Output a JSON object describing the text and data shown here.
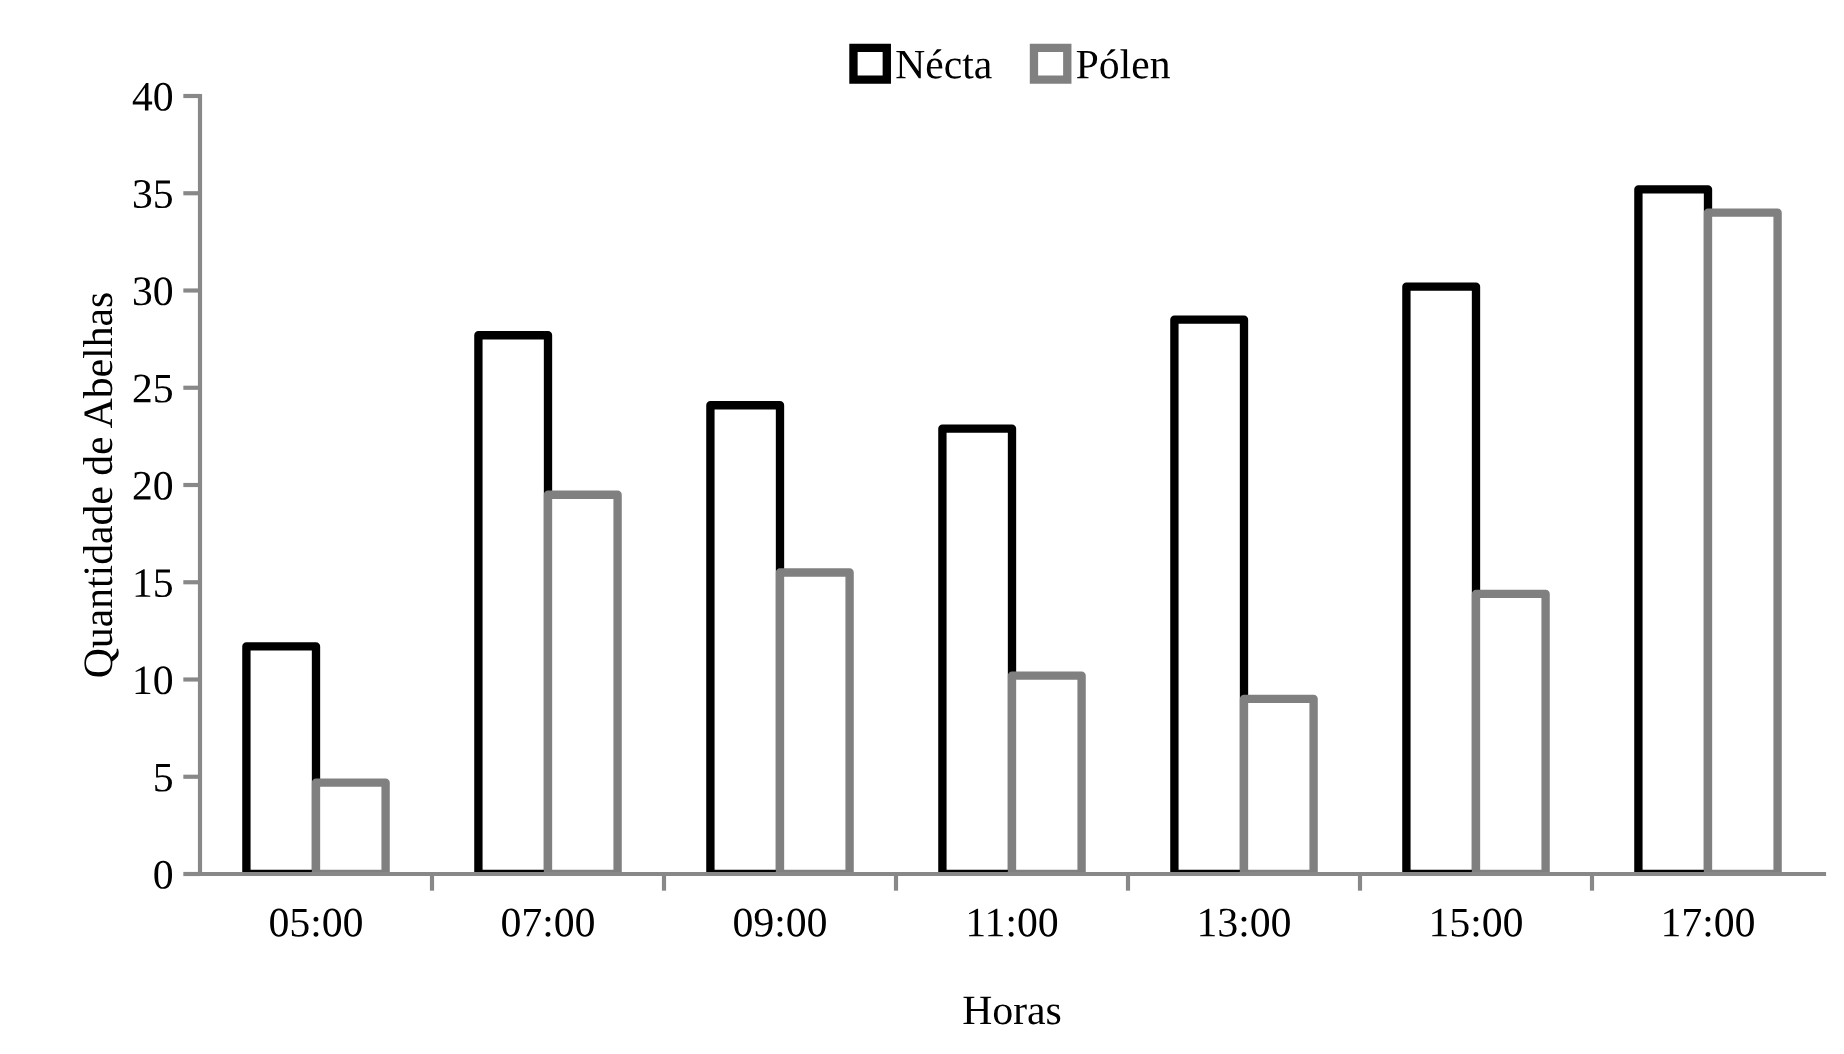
{
  "chart_data": {
    "type": "bar",
    "xlabel": "Horas",
    "ylabel": "Quantidade de Abelhas",
    "categories": [
      "05:00",
      "07:00",
      "09:00",
      "11:00",
      "13:00",
      "15:00",
      "17:00"
    ],
    "series": [
      {
        "name": "Nécta",
        "color": "#000000",
        "values": [
          11.7,
          27.7,
          24.1,
          22.9,
          28.5,
          30.2,
          35.2
        ]
      },
      {
        "name": "Pólen",
        "color": "#808080",
        "values": [
          4.7,
          19.5,
          15.5,
          10.2,
          9.0,
          14.4,
          34.0
        ]
      }
    ],
    "ylim": [
      0,
      40
    ],
    "yticks": [
      0,
      5,
      10,
      15,
      20,
      25,
      30,
      35,
      40
    ],
    "grid": false,
    "legend": "top"
  }
}
